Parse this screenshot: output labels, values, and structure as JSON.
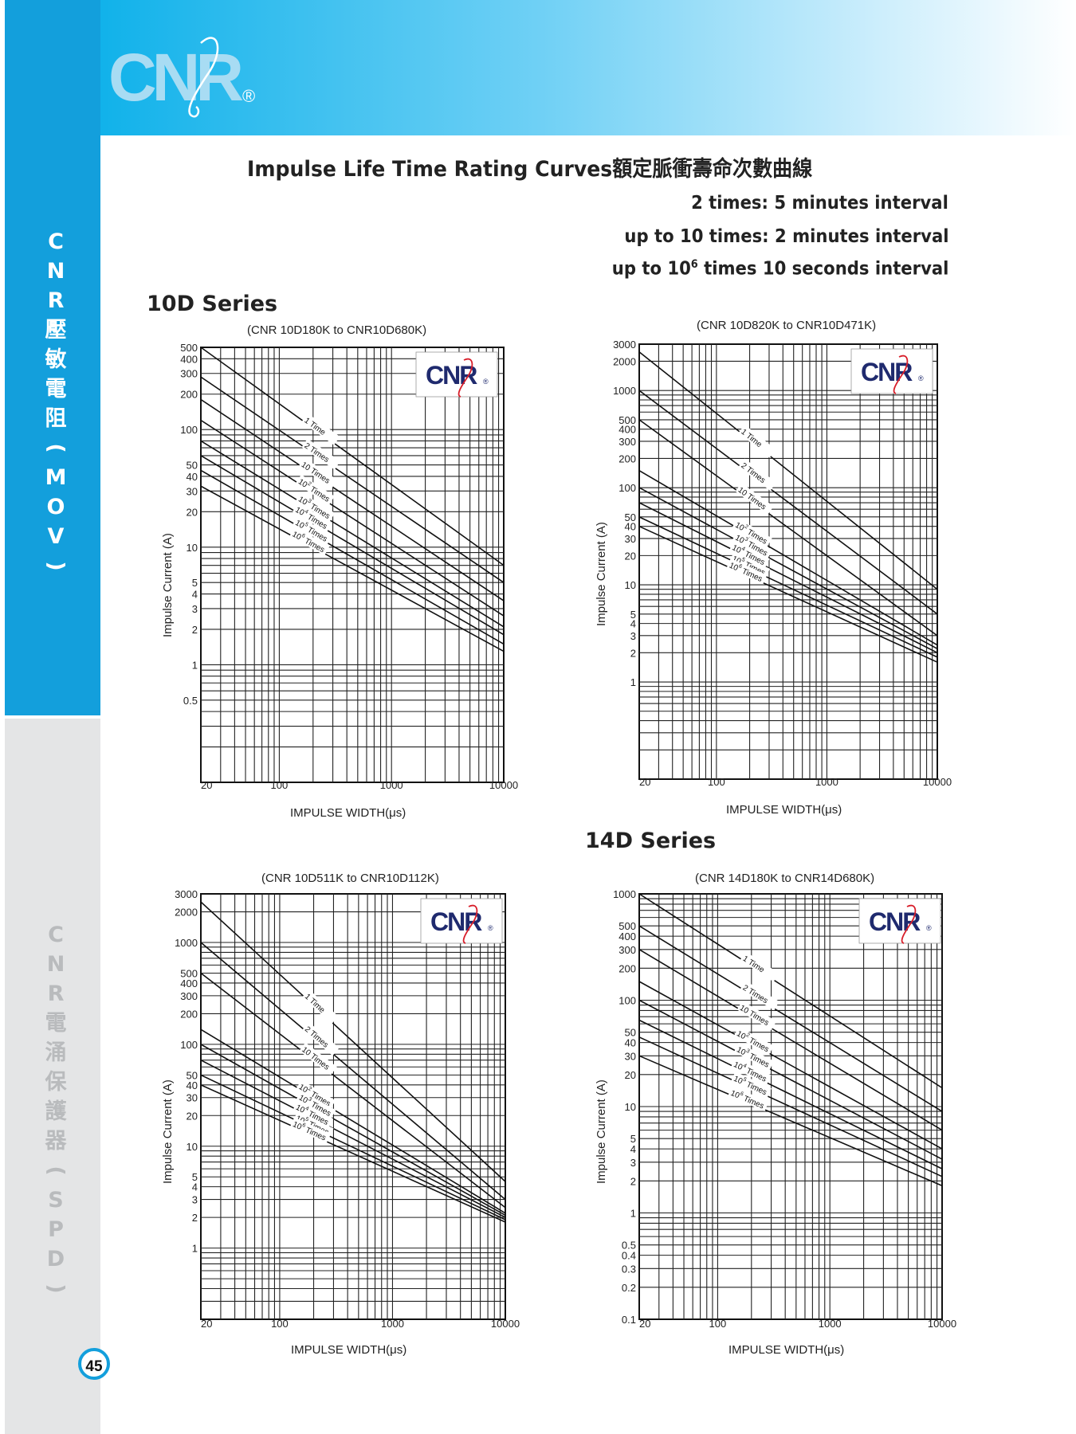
{
  "brand": {
    "logo_text": "CNR",
    "registered_mark": "®",
    "colors": {
      "band_blue": "#11b2ea",
      "sidebar_blue": "#139fdc",
      "sidebar_grey": "#e4e5e6",
      "logo_navy": "#1f2a6e",
      "logo_red": "#d81e2a"
    }
  },
  "sidebar": {
    "label_top": "CNR壓敏電阻(MOV)",
    "label_bottom": "CNR電涌保護器(SPD)"
  },
  "page_number": "45",
  "header": {
    "title": "Impulse Life Time Rating Curves額定脈衝壽命次數曲線",
    "note_1": "2 times: 5 minutes interval",
    "note_2": "up to 10 times: 2 minutes interval",
    "note_3_pre": "up to 10",
    "note_3_sup": "6",
    "note_3_post": " times 10 seconds interval"
  },
  "sections": {
    "series_10d": "10D Series",
    "series_14d": "14D Series"
  },
  "chart_data": [
    {
      "type": "line",
      "subtitle": "(CNR 10D180K to CNR10D680K)",
      "xlabel": "IMPULSE WIDTH(μs)",
      "ylabel": "Impulse  Current (A)",
      "xscale": "log",
      "yscale": "log",
      "xlim": [
        20,
        10000
      ],
      "ylim": [
        0.1,
        500
      ],
      "xticks": [
        20,
        100,
        1000,
        10000
      ],
      "yticks": [
        500,
        400,
        300,
        200,
        100,
        50,
        40,
        30,
        20,
        10,
        5,
        4,
        3,
        2,
        1,
        0.5
      ],
      "grid": true,
      "legend_inline": true,
      "series": [
        {
          "name": "1 Time",
          "label": [
            "1 Time"
          ],
          "x": [
            20,
            10000
          ],
          "y": [
            500,
            7
          ]
        },
        {
          "name": "2 Times",
          "label": [
            "2 Times"
          ],
          "x": [
            20,
            10000
          ],
          "y": [
            280,
            5
          ]
        },
        {
          "name": "10 Times",
          "label": [
            "10 Times"
          ],
          "x": [
            20,
            10000
          ],
          "y": [
            180,
            3.5
          ]
        },
        {
          "name": "10² Times",
          "label": [
            "10",
            "2",
            " Times"
          ],
          "x": [
            20,
            10000
          ],
          "y": [
            120,
            2.6
          ]
        },
        {
          "name": "10³ Times",
          "label": [
            "10",
            "3",
            " Times"
          ],
          "x": [
            20,
            10000
          ],
          "y": [
            80,
            2.1
          ]
        },
        {
          "name": "10⁴ Times",
          "label": [
            "10",
            "4",
            " Times"
          ],
          "x": [
            20,
            10000
          ],
          "y": [
            60,
            1.8
          ]
        },
        {
          "name": "10⁵ Times",
          "label": [
            "10",
            "5",
            " Times"
          ],
          "x": [
            20,
            10000
          ],
          "y": [
            45,
            1.5
          ]
        },
        {
          "name": "10⁶ Times",
          "label": [
            "10",
            "6",
            " Times"
          ],
          "x": [
            20,
            10000
          ],
          "y": [
            33,
            1.3
          ]
        }
      ]
    },
    {
      "type": "line",
      "subtitle": "(CNR 10D820K to CNR10D471K)",
      "xlabel": "IMPULSE WIDTH(μs)",
      "ylabel": "Impulse  Current (A)",
      "xscale": "log",
      "yscale": "log",
      "xlim": [
        20,
        10000
      ],
      "ylim": [
        0.1,
        3000
      ],
      "xticks": [
        20,
        100,
        1000,
        10000
      ],
      "yticks": [
        3000,
        2000,
        1000,
        500,
        400,
        300,
        200,
        100,
        50,
        40,
        30,
        20,
        10,
        5,
        4,
        3,
        2,
        1
      ],
      "grid": true,
      "legend_inline": true,
      "series": [
        {
          "name": "1 Time",
          "label": [
            "1 Time"
          ],
          "x": [
            20,
            10000
          ],
          "y": [
            2500,
            9
          ]
        },
        {
          "name": "2 Times",
          "label": [
            "2 Times"
          ],
          "x": [
            20,
            10000
          ],
          "y": [
            1000,
            5
          ]
        },
        {
          "name": "10 Times",
          "label": [
            "10 Times"
          ],
          "x": [
            20,
            10000
          ],
          "y": [
            500,
            3
          ]
        },
        {
          "name": "10² Times",
          "label": [
            "10",
            "2",
            " Times"
          ],
          "x": [
            20,
            10000
          ],
          "y": [
            150,
            2.4
          ]
        },
        {
          "name": "10³ Times",
          "label": [
            "10",
            "3",
            " Times"
          ],
          "x": [
            20,
            10000
          ],
          "y": [
            100,
            2.2
          ]
        },
        {
          "name": "10⁴ Times",
          "label": [
            "10",
            "4",
            " Times"
          ],
          "x": [
            20,
            10000
          ],
          "y": [
            70,
            2
          ]
        },
        {
          "name": "10⁵ Times",
          "label": [
            "10",
            "5",
            " Times"
          ],
          "x": [
            20,
            10000
          ],
          "y": [
            50,
            1.8
          ]
        },
        {
          "name": "10⁶ Times",
          "label": [
            "10",
            "6",
            " Times"
          ],
          "x": [
            20,
            10000
          ],
          "y": [
            40,
            1.6
          ]
        }
      ]
    },
    {
      "type": "line",
      "subtitle": "(CNR 10D511K to CNR10D112K)",
      "xlabel": "IMPULSE WIDTH(μs)",
      "ylabel": "Impulse  Current (A)",
      "xscale": "log",
      "yscale": "log",
      "xlim": [
        20,
        10000
      ],
      "ylim": [
        0.2,
        3000
      ],
      "xticks": [
        20,
        100,
        1000,
        10000
      ],
      "yticks": [
        3000,
        2000,
        1000,
        500,
        400,
        300,
        200,
        100,
        50,
        40,
        30,
        20,
        10,
        5,
        4,
        3,
        2,
        1
      ],
      "grid": true,
      "legend_inline": true,
      "series": [
        {
          "name": "1 Time",
          "label": [
            "1 Time"
          ],
          "x": [
            20,
            10000
          ],
          "y": [
            2500,
            4.5
          ]
        },
        {
          "name": "2 Times",
          "label": [
            "2 Times"
          ],
          "x": [
            20,
            10000
          ],
          "y": [
            1000,
            3
          ]
        },
        {
          "name": "10 Times",
          "label": [
            "10 Times"
          ],
          "x": [
            20,
            10000
          ],
          "y": [
            500,
            2.5
          ]
        },
        {
          "name": "10² Times",
          "label": [
            "10",
            "2",
            " Times"
          ],
          "x": [
            20,
            10000
          ],
          "y": [
            140,
            2.2
          ]
        },
        {
          "name": "10³ Times",
          "label": [
            "10",
            "3",
            " Times"
          ],
          "x": [
            20,
            10000
          ],
          "y": [
            100,
            2.1
          ]
        },
        {
          "name": "10⁴ Times",
          "label": [
            "10",
            "4",
            " Times"
          ],
          "x": [
            20,
            10000
          ],
          "y": [
            70,
            2
          ]
        },
        {
          "name": "10⁵ Times",
          "label": [
            "10",
            "5",
            " Times"
          ],
          "x": [
            20,
            10000
          ],
          "y": [
            50,
            1.9
          ]
        },
        {
          "name": "10⁶ Times",
          "label": [
            "10",
            "6",
            " Times"
          ],
          "x": [
            20,
            10000
          ],
          "y": [
            40,
            1.8
          ]
        }
      ]
    },
    {
      "type": "line",
      "subtitle": "(CNR 14D180K to CNR14D680K)",
      "xlabel": "IMPULSE WIDTH(μs)",
      "ylabel": "Impulse  Current (A)",
      "xscale": "log",
      "yscale": "log",
      "xlim": [
        20,
        10000
      ],
      "ylim": [
        0.1,
        1000
      ],
      "xticks": [
        20,
        100,
        1000,
        10000
      ],
      "yticks": [
        1000,
        500,
        400,
        300,
        200,
        100,
        50,
        40,
        30,
        20,
        10,
        5,
        4,
        3,
        2,
        1,
        0.5,
        0.4,
        0.3,
        0.2,
        0.1
      ],
      "grid": true,
      "legend_inline": true,
      "series": [
        {
          "name": "1 Time",
          "label": [
            "1 Time"
          ],
          "x": [
            20,
            10000
          ],
          "y": [
            1000,
            15
          ]
        },
        {
          "name": "2 Times",
          "label": [
            "2 Times"
          ],
          "x": [
            20,
            10000
          ],
          "y": [
            500,
            9
          ]
        },
        {
          "name": "10 Times",
          "label": [
            "10 Times"
          ],
          "x": [
            20,
            10000
          ],
          "y": [
            300,
            6
          ]
        },
        {
          "name": "10² Times",
          "label": [
            "10",
            "2",
            " Times"
          ],
          "x": [
            20,
            10000
          ],
          "y": [
            150,
            4
          ]
        },
        {
          "name": "10³ Times",
          "label": [
            "10",
            "3",
            " Times"
          ],
          "x": [
            20,
            10000
          ],
          "y": [
            100,
            3.2
          ]
        },
        {
          "name": "10⁴ Times",
          "label": [
            "10",
            "4",
            " Times"
          ],
          "x": [
            20,
            10000
          ],
          "y": [
            65,
            2.6
          ]
        },
        {
          "name": "10⁵ Times",
          "label": [
            "10",
            "5",
            " Times"
          ],
          "x": [
            20,
            10000
          ],
          "y": [
            45,
            2.2
          ]
        },
        {
          "name": "10⁶ Times",
          "label": [
            "10",
            "6",
            " Times"
          ],
          "x": [
            20,
            10000
          ],
          "y": [
            30,
            1.8
          ]
        }
      ]
    }
  ]
}
